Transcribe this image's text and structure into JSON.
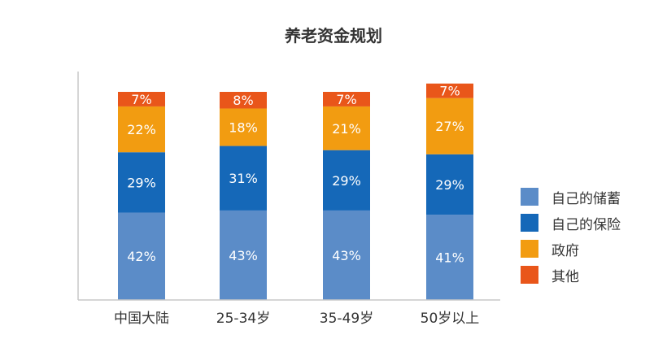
{
  "chart_data": {
    "type": "bar",
    "stacked": true,
    "percent": true,
    "title": "养老资金规划",
    "categories": [
      "中国大陆",
      "25-34岁",
      "35-49岁",
      "50岁以上"
    ],
    "series": [
      {
        "name": "自己的储蓄",
        "values": [
          42,
          43,
          43,
          41
        ],
        "color": "#5b8cc8"
      },
      {
        "name": "自己的保险",
        "values": [
          29,
          31,
          29,
          29
        ],
        "color": "#1568b8"
      },
      {
        "name": "政府",
        "values": [
          22,
          18,
          21,
          27
        ],
        "color": "#f29c11"
      },
      {
        "name": "其他",
        "values": [
          7,
          8,
          7,
          7
        ],
        "color": "#e9561a"
      }
    ],
    "ylim": [
      0,
      100
    ],
    "legend_position": "right",
    "grid": false
  }
}
